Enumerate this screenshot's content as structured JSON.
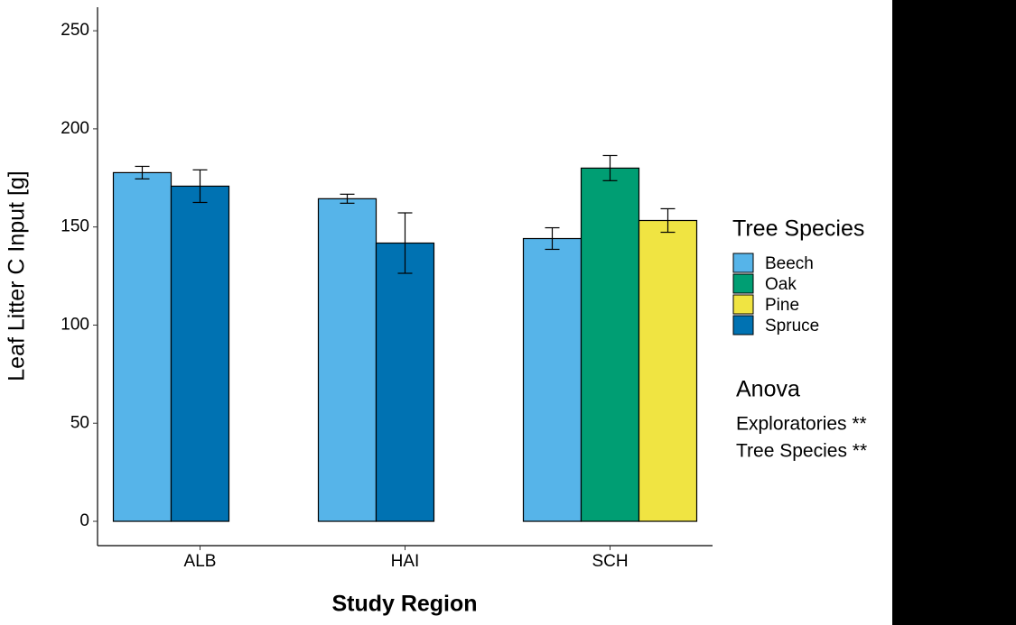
{
  "chart_data": {
    "type": "bar",
    "x_label": "Study Region",
    "y_label": "Leaf Litter C Input [g]",
    "categories": [
      "ALB",
      "HAI",
      "SCH"
    ],
    "series": [
      {
        "name": "Beech",
        "color": "#56B4E9",
        "values": [
          177.7,
          164.4,
          144.1
        ],
        "errors": [
          3.2,
          2.3,
          5.5
        ]
      },
      {
        "name": "Oak",
        "color": "#009E73",
        "values": [
          null,
          null,
          180.0
        ],
        "errors": [
          null,
          null,
          6.4
        ]
      },
      {
        "name": "Pine",
        "color": "#F0E442",
        "values": [
          null,
          null,
          153.3
        ],
        "errors": [
          null,
          null,
          6.0
        ]
      },
      {
        "name": "Spruce",
        "color": "#0072B2",
        "values": [
          170.8,
          141.8,
          null
        ],
        "errors": [
          8.3,
          15.4,
          null
        ]
      }
    ],
    "ylim": [
      -12.4,
      262
    ],
    "yticks": [
      0,
      50,
      100,
      150,
      200,
      250
    ],
    "legend_title": "Tree Species",
    "legend_position": "right",
    "annotation": {
      "title": "Anova",
      "lines": [
        "Exploratories **",
        "Tree Species **"
      ]
    }
  }
}
